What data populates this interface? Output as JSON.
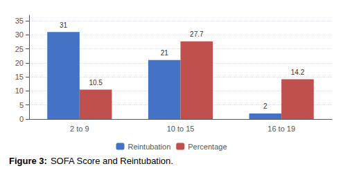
{
  "chart_data": {
    "type": "bar",
    "title": "Figure 3:",
    "subtitle": "SOFA Score and Reintubation.",
    "categories": [
      "2 to 9",
      "10 to 15",
      "16 to 19"
    ],
    "series": [
      {
        "name": "Reintubation",
        "color": "#4472C4",
        "values": [
          31,
          21,
          2
        ]
      },
      {
        "name": "Percentage",
        "color": "#C0504D",
        "values": [
          10.5,
          27.7,
          14.2
        ]
      }
    ],
    "ylim": [
      0,
      37
    ],
    "yticks": [
      0,
      5,
      10,
      15,
      20,
      25,
      30,
      35
    ],
    "grid": true,
    "legend": "bottom",
    "data_labels": true
  }
}
